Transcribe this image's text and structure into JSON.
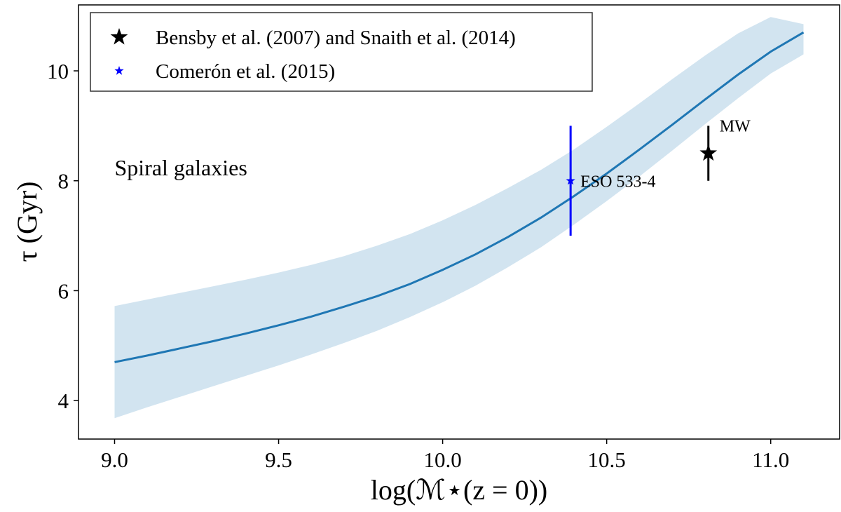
{
  "chart_data": {
    "type": "line",
    "xlabel": "log(ℳ⋆(z = 0))",
    "ylabel": "τ (Gyr)",
    "xlim": [
      8.89,
      11.21
    ],
    "ylim": [
      3.3,
      11.2
    ],
    "xticks": [
      "9.0",
      "9.5",
      "10.0",
      "10.5",
      "11.0"
    ],
    "xtick_values": [
      9.0,
      9.5,
      10.0,
      10.5,
      11.0
    ],
    "yticks": [
      "4",
      "6",
      "8",
      "10"
    ],
    "ytick_values": [
      4,
      6,
      8,
      10
    ],
    "grid": false,
    "legend_position": "top-left",
    "annotation": "Spiral galaxies",
    "series": [
      {
        "kind": "line-with-band",
        "color": "#1f77b4",
        "band_color": "#1f77b4",
        "x": [
          9.0,
          9.1,
          9.2,
          9.3,
          9.4,
          9.5,
          9.6,
          9.7,
          9.8,
          9.9,
          10.0,
          10.1,
          10.2,
          10.3,
          10.4,
          10.5,
          10.6,
          10.7,
          10.8,
          10.9,
          11.0,
          11.1
        ],
        "y": [
          4.7,
          4.82,
          4.95,
          5.08,
          5.22,
          5.37,
          5.53,
          5.71,
          5.9,
          6.12,
          6.38,
          6.66,
          6.98,
          7.33,
          7.72,
          8.13,
          8.57,
          9.02,
          9.48,
          9.93,
          10.35,
          10.7
        ],
        "lower": [
          3.68,
          3.88,
          4.07,
          4.26,
          4.45,
          4.64,
          4.84,
          5.05,
          5.27,
          5.52,
          5.79,
          6.09,
          6.43,
          6.79,
          7.2,
          7.63,
          8.08,
          8.55,
          9.03,
          9.5,
          9.95,
          10.3
        ],
        "upper": [
          5.72,
          5.84,
          5.96,
          6.08,
          6.2,
          6.33,
          6.47,
          6.63,
          6.82,
          7.03,
          7.28,
          7.56,
          7.87,
          8.2,
          8.57,
          8.98,
          9.41,
          9.85,
          10.28,
          10.68,
          10.98,
          10.85
        ]
      },
      {
        "name": "Bensby et al. (2007) and Snaith et al. (2014)",
        "kind": "errorbar",
        "marker": "star",
        "color": "#000000",
        "x": [
          10.81
        ],
        "y": [
          8.5
        ],
        "yerr_low": [
          8.0
        ],
        "yerr_high": [
          9.0
        ],
        "label": "MW"
      },
      {
        "name": "Comerón et al. (2015)",
        "kind": "errorbar",
        "marker": "star",
        "color": "#0000ff",
        "x": [
          10.39
        ],
        "y": [
          8.0
        ],
        "yerr_low": [
          7.0
        ],
        "yerr_high": [
          9.0
        ],
        "label": "ESO 533-4"
      }
    ]
  }
}
